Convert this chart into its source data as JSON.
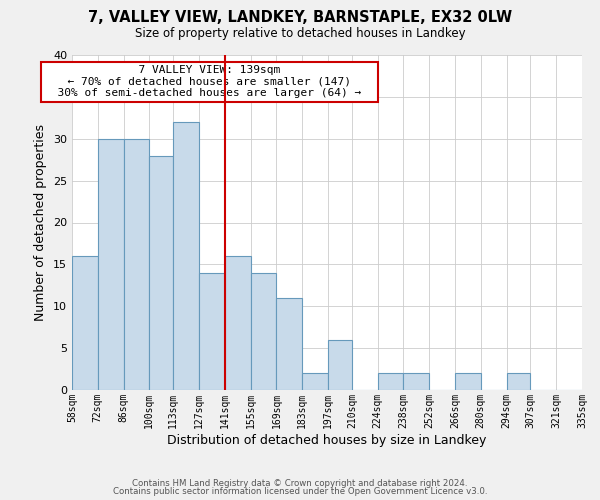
{
  "title": "7, VALLEY VIEW, LANDKEY, BARNSTAPLE, EX32 0LW",
  "subtitle": "Size of property relative to detached houses in Landkey",
  "xlabel": "Distribution of detached houses by size in Landkey",
  "ylabel": "Number of detached properties",
  "bar_color": "#c8daea",
  "bar_edge_color": "#6699bb",
  "reference_line_x": 141,
  "reference_line_color": "#cc0000",
  "bin_edges": [
    58,
    72,
    86,
    100,
    113,
    127,
    141,
    155,
    169,
    183,
    197,
    210,
    224,
    238,
    252,
    266,
    280,
    294,
    307,
    321,
    335
  ],
  "bar_heights": [
    16,
    30,
    30,
    28,
    32,
    14,
    16,
    14,
    11,
    2,
    6,
    0,
    2,
    2,
    0,
    2,
    0,
    2,
    0,
    0
  ],
  "ylim": [
    0,
    40
  ],
  "yticks": [
    0,
    5,
    10,
    15,
    20,
    25,
    30,
    35,
    40
  ],
  "annotation_title": "7 VALLEY VIEW: 139sqm",
  "annotation_line1": "← 70% of detached houses are smaller (147)",
  "annotation_line2": "30% of semi-detached houses are larger (64) →",
  "footer_line1": "Contains HM Land Registry data © Crown copyright and database right 2024.",
  "footer_line2": "Contains public sector information licensed under the Open Government Licence v3.0.",
  "background_color": "#f0f0f0",
  "plot_background_color": "#ffffff",
  "grid_color": "#cccccc"
}
